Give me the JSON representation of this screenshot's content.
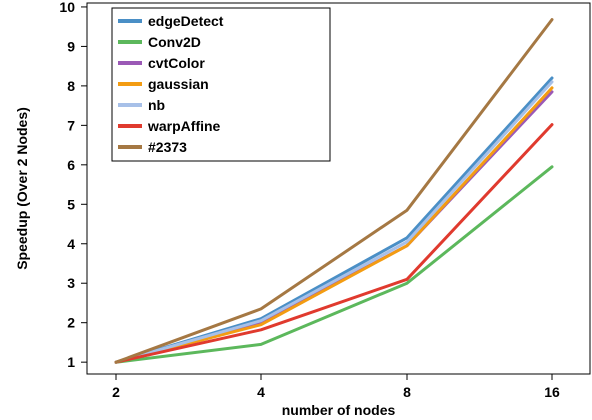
{
  "chart_data": {
    "type": "line",
    "x": [
      "2",
      "4",
      "8",
      "16"
    ],
    "xlabel": "number of nodes",
    "ylabel": "Speedup (Over 2 Nodes)",
    "ylim": [
      0.7,
      10.1
    ],
    "yticks": [
      1,
      2,
      3,
      4,
      5,
      6,
      7,
      8,
      9,
      10
    ],
    "grid": false,
    "legend_position": "top-left",
    "series": [
      {
        "name": "edgeDetect",
        "color": "#4a8fc6",
        "values": [
          1,
          2.1,
          4.15,
          8.2
        ]
      },
      {
        "name": "Conv2D",
        "color": "#5cb85c",
        "values": [
          1,
          1.45,
          3.0,
          5.95
        ]
      },
      {
        "name": "cvtColor",
        "color": "#9b59b6",
        "values": [
          1,
          2.0,
          3.95,
          7.85
        ]
      },
      {
        "name": "gaussian",
        "color": "#f39c12",
        "values": [
          1,
          1.95,
          3.95,
          7.95
        ]
      },
      {
        "name": "nb",
        "color": "#a7c0e8",
        "values": [
          1,
          2.05,
          4.05,
          8.1
        ]
      },
      {
        "name": "warpAffine",
        "color": "#e03a2e",
        "values": [
          1,
          1.82,
          3.1,
          7.02
        ]
      },
      {
        "name": "#2373",
        "color": "#a57843",
        "values": [
          1,
          2.35,
          4.85,
          9.68
        ]
      }
    ]
  }
}
